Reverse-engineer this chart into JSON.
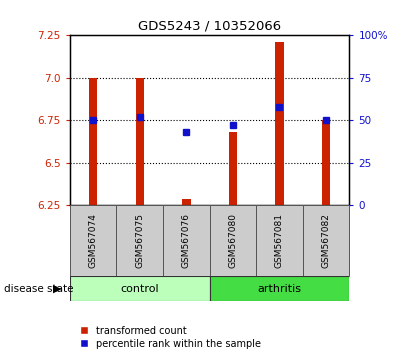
{
  "title": "GDS5243 / 10352066",
  "samples": [
    "GSM567074",
    "GSM567075",
    "GSM567076",
    "GSM567080",
    "GSM567081",
    "GSM567082"
  ],
  "bar_bottom": 6.25,
  "bar_tops": [
    7.0,
    7.0,
    6.285,
    6.68,
    7.21,
    6.75
  ],
  "percentile_ranks": [
    50,
    52,
    43,
    47,
    58,
    50
  ],
  "ylim_left": [
    6.25,
    7.25
  ],
  "ylim_right": [
    0,
    100
  ],
  "yticks_left": [
    6.25,
    6.5,
    6.75,
    7.0,
    7.25
  ],
  "yticks_right": [
    0,
    25,
    50,
    75,
    100
  ],
  "ytick_right_labels": [
    "0",
    "25",
    "50",
    "75",
    "100%"
  ],
  "bar_color": "#cc2200",
  "square_color": "#1111cc",
  "control_color": "#bbffbb",
  "arthritis_color": "#44dd44",
  "label_bg_color": "#cccccc",
  "group_labels": [
    "control",
    "arthritis"
  ],
  "dotted_yticks": [
    6.5,
    6.75,
    7.0
  ],
  "legend_red_label": "transformed count",
  "legend_blue_label": "percentile rank within the sample",
  "disease_state_label": "disease state"
}
